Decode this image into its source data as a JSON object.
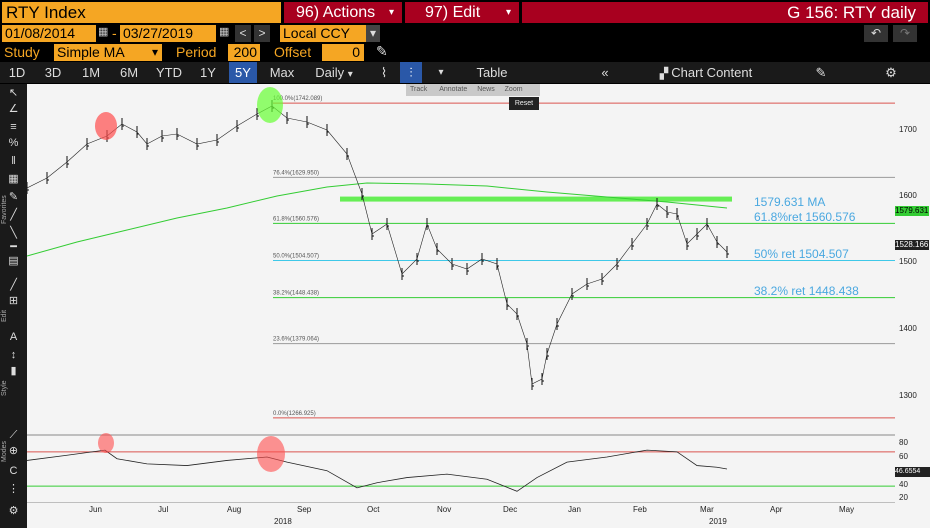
{
  "header": {
    "ticker": "RTY Index",
    "actions": "96) Actions",
    "edit": "97) Edit",
    "title": "G 156: RTY daily"
  },
  "controls": {
    "start_date": "01/08/2014",
    "dash": "-",
    "end_date": "03/27/2019",
    "currency": "Local CCY",
    "study_label": "Study",
    "study_value": "Simple MA",
    "period_label": "Period",
    "period_value": "200",
    "offset_label": "Offset",
    "offset_value": "0"
  },
  "range_tabs": [
    "1D",
    "3D",
    "1M",
    "6M",
    "YTD",
    "1Y",
    "5Y",
    "Max"
  ],
  "active_range": "5Y",
  "toolbar": {
    "frequency": "Daily",
    "table": "Table",
    "chart_content": "Chart Content"
  },
  "mini_toolbar": {
    "track": "Track",
    "annotate": "Annotate",
    "news": "News",
    "zoom": "Zoom",
    "reset": "Reset"
  },
  "sidebar_labels": {
    "favorites": "Favorites",
    "edit": "Edit",
    "style": "Style",
    "modes": "Modes"
  },
  "fib_levels": [
    {
      "label": "100.0%(1742.089)",
      "value": 1742.089,
      "color": "#d9534f"
    },
    {
      "label": "76.4%(1629.950)",
      "value": 1629.95,
      "color": "#9a9a9a"
    },
    {
      "label": "61.8%(1560.576)",
      "value": 1560.576,
      "color": "#33cc33"
    },
    {
      "label": "50.0%(1504.507)",
      "value": 1504.507,
      "color": "#3ec8e8"
    },
    {
      "label": "38.2%(1448.438)",
      "value": 1448.438,
      "color": "#33cc33"
    },
    {
      "label": "23.6%(1379.064)",
      "value": 1379.064,
      "color": "#9a9a9a"
    },
    {
      "label": "0.0%(1266.925)",
      "value": 1266.925,
      "color": "#d9534f"
    }
  ],
  "annotations": {
    "ma": "1579.631  MA",
    "ret618": "61.8%ret 1560.576",
    "ret50": "50% ret 1504.507",
    "ret382": "38.2% ret 1448.438"
  },
  "price_axis": {
    "ticks": [
      "1700",
      "1600",
      "1500",
      "1400",
      "1300"
    ],
    "last_ma": "1579.631",
    "last_price": "1528.166"
  },
  "rsi_axis": {
    "ticks": [
      "80",
      "60",
      "40",
      "20"
    ],
    "last": "46.6554"
  },
  "x_axis": {
    "months": [
      "Jun",
      "Jul",
      "Aug",
      "Sep",
      "Oct",
      "Nov",
      "Dec",
      "Jan",
      "Feb",
      "Mar",
      "Apr",
      "May"
    ],
    "years": [
      "2018",
      "2019"
    ]
  },
  "colors": {
    "ticker_bg": "#f5a623",
    "action_bg": "#a8001f",
    "active_tab": "#2a58a8",
    "ma_line": "#33cc33",
    "price_bars": "#111111",
    "highlight_red": "#ff4d4d",
    "highlight_green": "#66ff33"
  }
}
